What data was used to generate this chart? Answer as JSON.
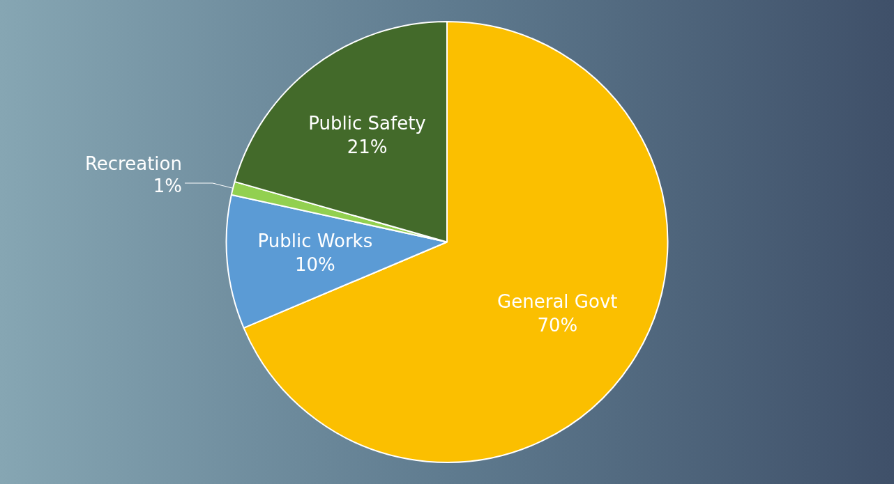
{
  "chart_data": {
    "type": "pie",
    "categories": [
      "General Govt",
      "Public Works",
      "Recreation",
      "Public Safety"
    ],
    "values": [
      70,
      10,
      1,
      21
    ],
    "colors": [
      "#fbbf00",
      "#5b9bd5",
      "#92d050",
      "#436a2a"
    ],
    "value_labels": [
      "70%",
      "10%",
      "1%",
      "21%"
    ],
    "legend": false
  }
}
